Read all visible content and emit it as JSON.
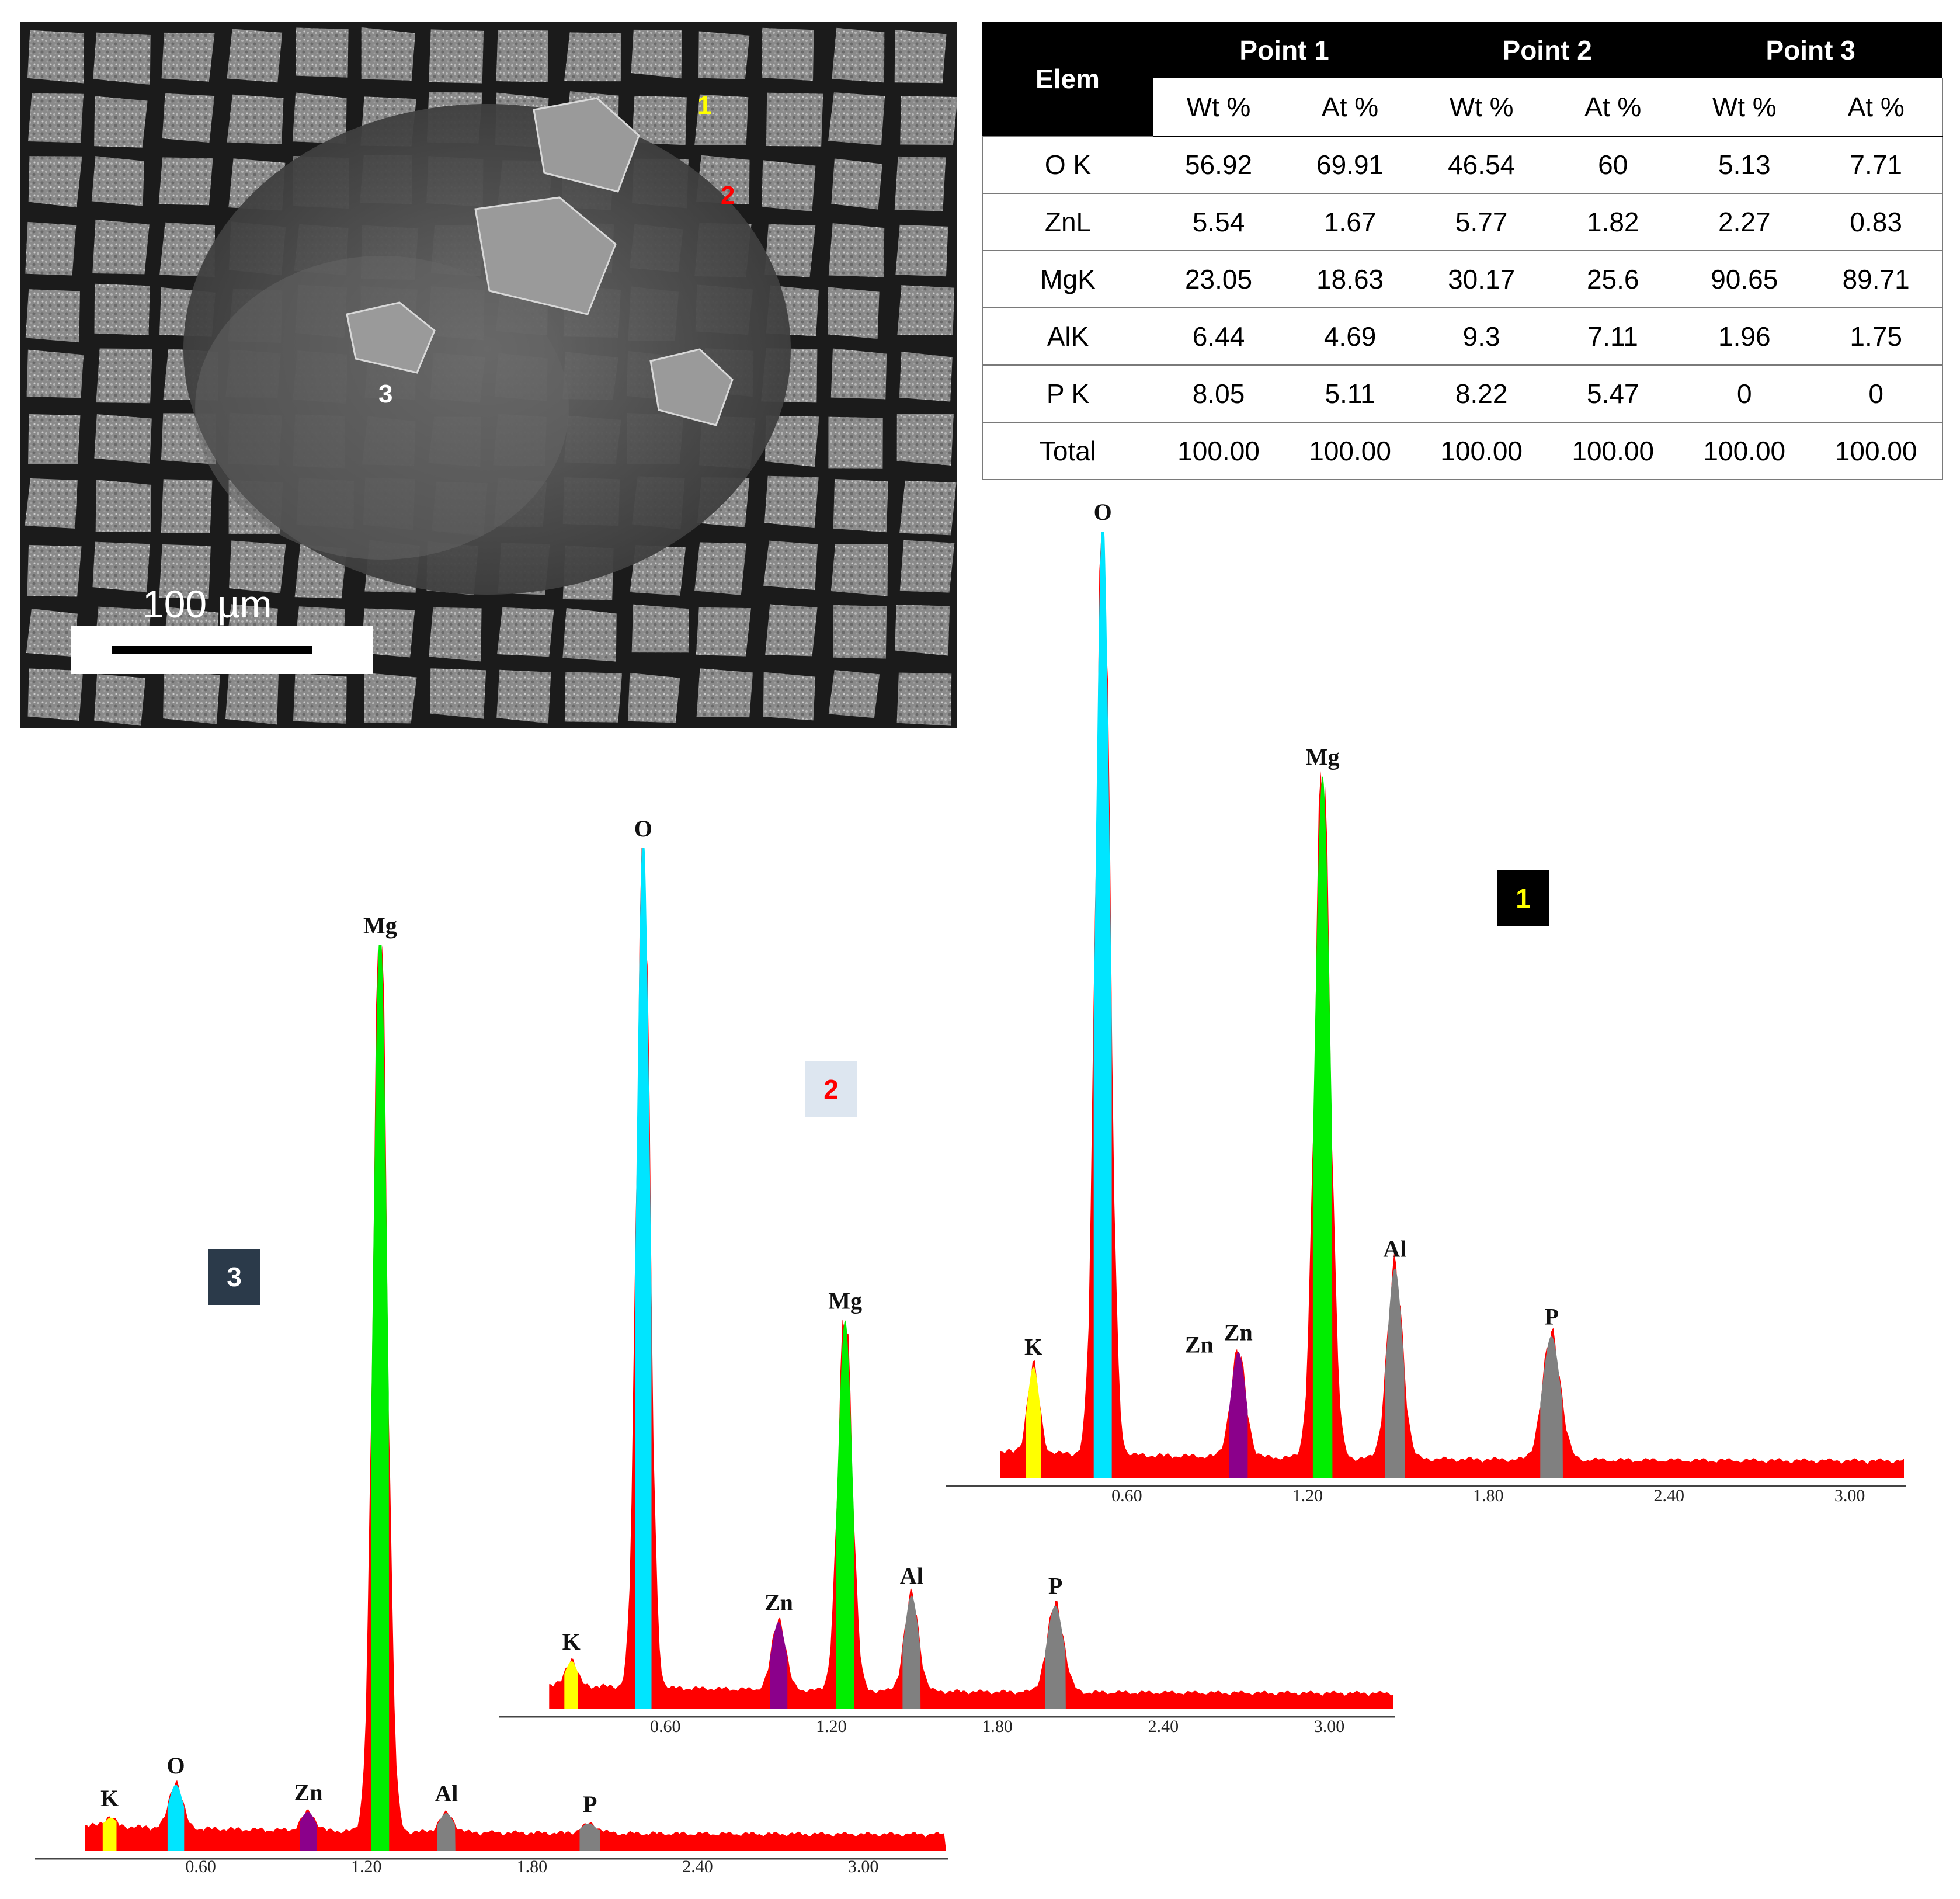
{
  "sem": {
    "point_labels": [
      {
        "text": "1",
        "color": "#ffff00"
      },
      {
        "text": "2",
        "color": "#ff0000"
      },
      {
        "text": "3",
        "color": "#ffffff"
      }
    ],
    "scale_bar_text": "100 µm"
  },
  "table": {
    "elem_header": "Elem",
    "point_headers": [
      "Point 1",
      "Point 2",
      "Point 3"
    ],
    "sub_headers": [
      "Wt %",
      "At %",
      "Wt %",
      "At %",
      "Wt %",
      "At %"
    ],
    "rows": [
      {
        "elem": "O K",
        "values": [
          "56.92",
          "69.91",
          "46.54",
          "60",
          "5.13",
          "7.71"
        ]
      },
      {
        "elem": "ZnL",
        "values": [
          "5.54",
          "1.67",
          "5.77",
          "1.82",
          "2.27",
          "0.83"
        ]
      },
      {
        "elem": "MgK",
        "values": [
          "23.05",
          "18.63",
          "30.17",
          "25.6",
          "90.65",
          "89.71"
        ]
      },
      {
        "elem": "AlK",
        "values": [
          "6.44",
          "4.69",
          "9.3",
          "7.11",
          "1.96",
          "1.75"
        ]
      },
      {
        "elem": "P K",
        "values": [
          "8.05",
          "5.11",
          "8.22",
          "5.47",
          "0",
          "0"
        ]
      },
      {
        "elem": "Total",
        "values": [
          "100.00",
          "100.00",
          "100.00",
          "100.00",
          "100.00",
          "100.00"
        ]
      }
    ]
  },
  "colors": {
    "background": "#ff0000",
    "K": "#ffff00",
    "O": "#00e5ff",
    "Zn": "#8b008b",
    "Mg": "#00ee00",
    "Al": "#808080",
    "P": "#808080",
    "badge1_bg": "#000000",
    "badge1_fg": "#ffff00",
    "badge2_bg": "#dde6f0",
    "badge2_fg": "#ff0000",
    "badge3_bg": "#2b3a4a",
    "badge3_fg": "#ffffff"
  },
  "chart_data": [
    {
      "type": "area",
      "badge": "1",
      "x_ticks": [
        "0.60",
        "1.20",
        "1.80",
        "2.40",
        "3.00"
      ],
      "xlim": [
        0.0,
        3.18
      ],
      "ylim": [
        0,
        100
      ],
      "peaks": [
        {
          "element": "K",
          "label": "K",
          "energy": 0.29,
          "height": 9
        },
        {
          "element": "O",
          "label": "O",
          "energy": 0.52,
          "height": 100
        },
        {
          "element": "Zn",
          "label": "Zn",
          "energy": 0.97,
          "height": 11
        },
        {
          "element": "Zn",
          "label": "Zn",
          "energy": 0.84,
          "height": 2,
          "label_only": true
        },
        {
          "element": "Mg",
          "label": "Mg",
          "energy": 1.25,
          "height": 72
        },
        {
          "element": "Al",
          "label": "Al",
          "energy": 1.49,
          "height": 20
        },
        {
          "element": "P",
          "label": "P",
          "energy": 2.01,
          "height": 13
        }
      ]
    },
    {
      "type": "area",
      "badge": "2",
      "x_ticks": [
        "0.60",
        "1.20",
        "1.80",
        "2.40",
        "3.00"
      ],
      "xlim": [
        0.0,
        3.23
      ],
      "ylim": [
        0,
        100
      ],
      "peaks": [
        {
          "element": "K",
          "label": "K",
          "energy": 0.26,
          "height": 3
        },
        {
          "element": "O",
          "label": "O",
          "energy": 0.52,
          "height": 100
        },
        {
          "element": "Zn",
          "label": "Zn",
          "energy": 1.01,
          "height": 8
        },
        {
          "element": "Mg",
          "label": "Mg",
          "energy": 1.25,
          "height": 43
        },
        {
          "element": "Al",
          "label": "Al",
          "energy": 1.49,
          "height": 11
        },
        {
          "element": "P",
          "label": "P",
          "energy": 2.01,
          "height": 10
        }
      ]
    },
    {
      "type": "area",
      "badge": "3",
      "x_ticks": [
        "0.60",
        "1.20",
        "1.80",
        "2.40",
        "3.00"
      ],
      "xlim": [
        0.0,
        3.3
      ],
      "ylim": [
        0,
        100
      ],
      "peaks": [
        {
          "element": "K",
          "label": "K",
          "energy": 0.27,
          "height": 1
        },
        {
          "element": "O",
          "label": "O",
          "energy": 0.51,
          "height": 5
        },
        {
          "element": "Zn",
          "label": "Zn",
          "energy": 0.99,
          "height": 2
        },
        {
          "element": "Mg",
          "label": "Mg",
          "energy": 1.25,
          "height": 100
        },
        {
          "element": "Al",
          "label": "Al",
          "energy": 1.49,
          "height": 2
        },
        {
          "element": "P",
          "label": "P",
          "energy": 2.01,
          "height": 1
        }
      ]
    }
  ]
}
